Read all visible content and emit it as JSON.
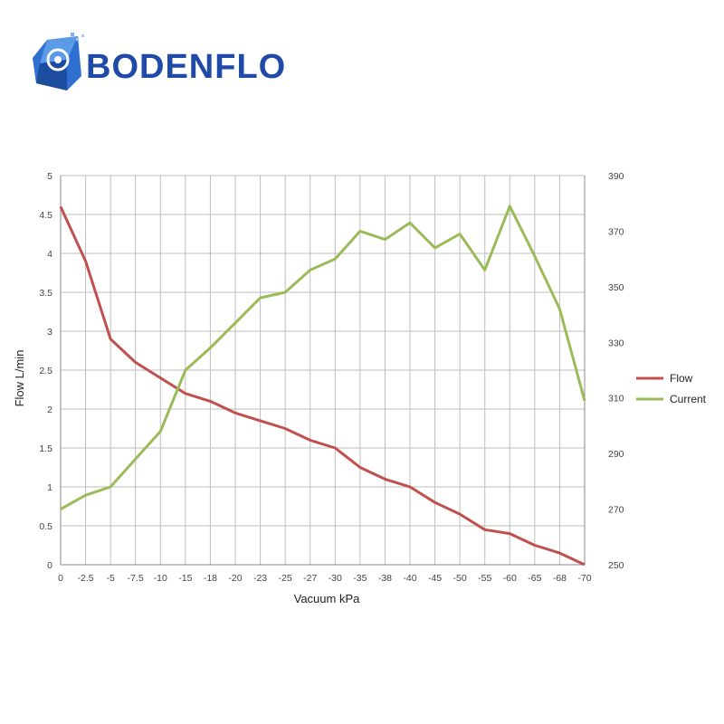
{
  "brand": {
    "name": "BODENFLO",
    "logo_icon": "pump-cube-icon",
    "color": "#1f4aa8"
  },
  "chart_data": {
    "type": "line",
    "xlabel": "Vacuum kPa",
    "ylabel": "Flow L/min",
    "categories": [
      "0",
      "-2.5",
      "-5",
      "-7.5",
      "-10",
      "-15",
      "-18",
      "-20",
      "-23",
      "-25",
      "-27",
      "-30",
      "-35",
      "-38",
      "-40",
      "-45",
      "-50",
      "-55",
      "-60",
      "-65",
      "-68",
      "-70"
    ],
    "ylim": [
      0,
      5
    ],
    "y_ticks": [
      "0",
      "0.5",
      "1",
      "1.5",
      "2",
      "2.5",
      "3",
      "3.5",
      "4",
      "4.5",
      "5"
    ],
    "y2lim": [
      250,
      390
    ],
    "y2_ticks": [
      "250",
      "270",
      "290",
      "310",
      "330",
      "350",
      "370",
      "390"
    ],
    "grid": true,
    "legend_position": "right",
    "series": [
      {
        "name": "Flow",
        "axis": "left",
        "color": "#c0504d",
        "values": [
          4.6,
          3.9,
          2.9,
          2.6,
          2.4,
          2.2,
          2.1,
          1.95,
          1.85,
          1.75,
          1.6,
          1.5,
          1.25,
          1.1,
          1.0,
          0.8,
          0.65,
          0.45,
          0.4,
          0.25,
          0.15,
          0.0
        ]
      },
      {
        "name": "Current",
        "axis": "right",
        "color": "#9bbb59",
        "values": [
          270,
          275,
          278,
          288,
          298,
          320,
          328,
          337,
          346,
          348,
          356,
          360,
          370,
          367,
          373,
          364,
          369,
          356,
          379,
          361,
          342,
          309
        ]
      }
    ]
  }
}
